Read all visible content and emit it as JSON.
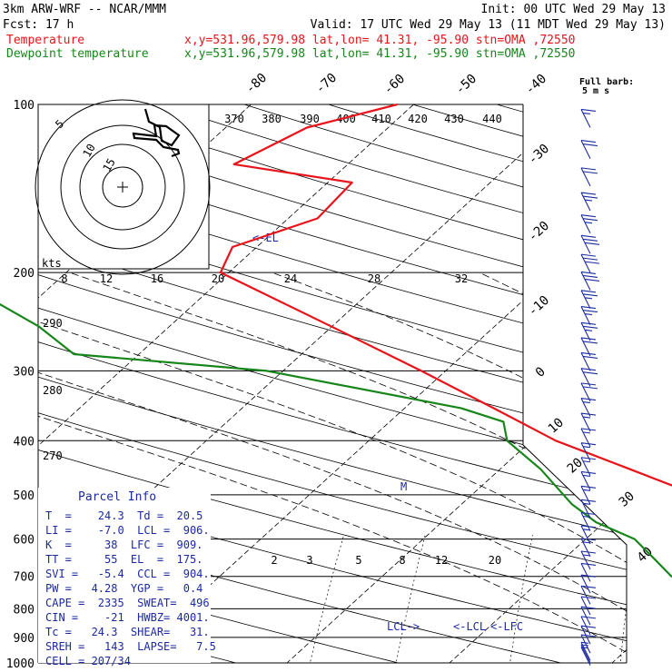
{
  "header": {
    "line1_left": "3km ARW-WRF -- NCAR/MMM",
    "line1_right": "Init: 00 UTC Wed 29 May 13",
    "line2_left": "Fcst:   17 h",
    "line2_right": "Valid: 17 UTC Wed 29 May 13 (11 MDT Wed 29 May 13)",
    "temp_label": "Temperature",
    "temp_info": "x,y=531.96,579.98   lat,lon= 41.31, -95.90  stn=OMA ,72550",
    "dew_label": "Dewpoint temperature",
    "dew_info": "x,y=531.96,579.98   lat,lon= 41.31, -95.90  stn=OMA ,72550",
    "barb_title_1": "Full barb:",
    "barb_title_2": "5 m s"
  },
  "colors": {
    "temperature": "#e8141a",
    "dewpoint": "#17861a",
    "header_red": "#e8141a",
    "header_green": "#17861a",
    "parcel_info": "#1c2aa0",
    "barbs": "#1c2aa0"
  },
  "chart_data": {
    "type": "line",
    "title": "",
    "x_axis": "temperature (C), skewed",
    "y_axis": "pressure (hPa), log scale",
    "pressure_ticks": [
      100,
      200,
      300,
      400,
      500,
      600,
      700,
      800,
      900,
      1000
    ],
    "isotherm_labels": [
      "-80",
      "-70",
      "-60",
      "-50",
      "-40",
      "-30",
      "-20",
      "-10",
      "0",
      "10",
      "20",
      "30",
      "40"
    ],
    "theta_e_labels": [
      "370",
      "380",
      "390",
      "400",
      "410",
      "420",
      "430",
      "440"
    ],
    "mixing_ratio_labels": [
      "2",
      "3",
      "5",
      "8",
      "12",
      "20"
    ],
    "theta_labels": [
      "290",
      "280",
      "270"
    ],
    "hodograph": {
      "rings": [
        "5",
        "10",
        "15"
      ],
      "speed_unit": "kts",
      "speed_scale": [
        "8",
        "12",
        "16",
        "20",
        "24",
        "28",
        "32"
      ]
    },
    "annotations": {
      "el": "<-EL",
      "lcl_left": "LCL->",
      "lcl_right": "<-LCL",
      "lfc": "<-LFC",
      "melting": "M"
    },
    "series": [
      {
        "name": "Temperature",
        "points": [
          [
            905,
            26.5
          ],
          [
            890,
            24.0
          ],
          [
            860,
            22.8
          ],
          [
            800,
            21.5
          ],
          [
            750,
            20.6
          ],
          [
            700,
            18.6
          ],
          [
            660,
            14.6
          ],
          [
            620,
            11.2
          ],
          [
            575,
            9.0
          ],
          [
            500,
            3.8
          ],
          [
            450,
            -2.0
          ],
          [
            400,
            -8.5
          ],
          [
            350,
            -14.5
          ],
          [
            300,
            -21.5
          ],
          [
            250,
            -30.0
          ],
          [
            200,
            -40.5
          ],
          [
            180,
            -41.5
          ],
          [
            160,
            -38.2
          ],
          [
            138,
            -38.5
          ],
          [
            128,
            -47.0
          ],
          [
            110,
            -45.0
          ],
          [
            100,
            -41.0
          ]
        ]
      },
      {
        "name": "Dewpoint temperature",
        "points": [
          [
            905,
            20.5
          ],
          [
            880,
            20.4
          ],
          [
            850,
            18.4
          ],
          [
            800,
            16.2
          ],
          [
            750,
            11.5
          ],
          [
            700,
            7.8
          ],
          [
            650,
            5.5
          ],
          [
            600,
            3.0
          ],
          [
            560,
            -0.5
          ],
          [
            520,
            -3.2
          ],
          [
            450,
            -7.5
          ],
          [
            400,
            -11.5
          ],
          [
            370,
            -13.0
          ],
          [
            350,
            -16.5
          ],
          [
            300,
            -31.0
          ],
          [
            280,
            -44.0
          ],
          [
            250,
            -48.0
          ],
          [
            200,
            -57.5
          ],
          [
            170,
            -58.5
          ],
          [
            150,
            -62.5
          ],
          [
            125,
            -71.5
          ],
          [
            110,
            -71.5
          ],
          [
            100,
            -68.5
          ]
        ]
      }
    ],
    "wind_barbs": [
      {
        "p": 110,
        "speed": 15
      },
      {
        "p": 125,
        "speed": 20
      },
      {
        "p": 140,
        "speed": 20
      },
      {
        "p": 155,
        "speed": 25
      },
      {
        "p": 170,
        "speed": 25
      },
      {
        "p": 185,
        "speed": 30
      },
      {
        "p": 200,
        "speed": 30
      },
      {
        "p": 215,
        "speed": 30
      },
      {
        "p": 232,
        "speed": 25
      },
      {
        "p": 248,
        "speed": 25
      },
      {
        "p": 265,
        "speed": 25
      },
      {
        "p": 282,
        "speed": 20
      },
      {
        "p": 300,
        "speed": 20
      },
      {
        "p": 320,
        "speed": 20
      },
      {
        "p": 340,
        "speed": 20
      },
      {
        "p": 362,
        "speed": 15
      },
      {
        "p": 385,
        "speed": 15
      },
      {
        "p": 410,
        "speed": 15
      },
      {
        "p": 435,
        "speed": 15
      },
      {
        "p": 462,
        "speed": 15
      },
      {
        "p": 490,
        "speed": 15
      },
      {
        "p": 520,
        "speed": 15
      },
      {
        "p": 550,
        "speed": 15
      },
      {
        "p": 580,
        "speed": 15
      },
      {
        "p": 612,
        "speed": 15
      },
      {
        "p": 645,
        "speed": 15
      },
      {
        "p": 680,
        "speed": 15
      },
      {
        "p": 715,
        "speed": 10
      },
      {
        "p": 750,
        "speed": 10
      },
      {
        "p": 785,
        "speed": 10
      },
      {
        "p": 820,
        "speed": 10
      },
      {
        "p": 855,
        "speed": 10
      },
      {
        "p": 890,
        "speed": 10
      },
      {
        "p": 925,
        "speed": 10
      },
      {
        "p": 960,
        "speed": 10
      },
      {
        "p": 990,
        "speed": 5
      },
      {
        "p": 1000,
        "speed": 5
      },
      {
        "p": 1010,
        "speed": 5
      }
    ]
  },
  "parcel_info": {
    "title": "Parcel Info",
    "rows": [
      "T  =    24.3  Td =  20.5",
      "LI =    -7.0  LCL =  906.",
      "K  =     38  LFC =  909.",
      "TT =     55  EL  =  175.",
      "SVI =   -5.4  CCL =  904.",
      "PW =   4.28  YGP =   0.4",
      "CAPE =  2335  SWEAT=  496",
      "CIN =    -21  HWBZ= 4001.",
      "Tc =   24.3  SHEAR=   31.",
      "SREH =   143  LAPSE=   7.5",
      "CELL = 207/34"
    ]
  }
}
